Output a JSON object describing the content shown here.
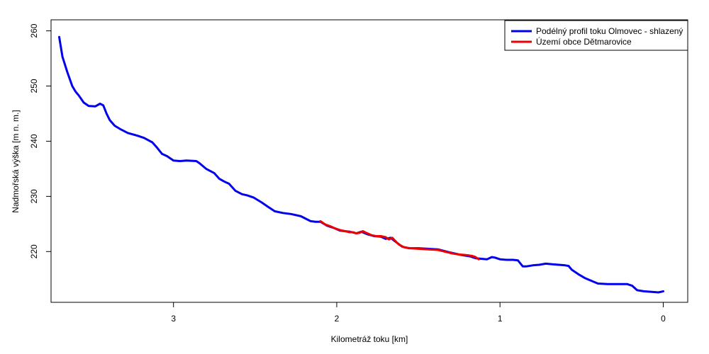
{
  "chart_data": {
    "type": "line",
    "xlabel": "Kilometráž toku [km]",
    "ylabel": "Nadmořská výška [m n. m.]",
    "xlim": [
      3.75,
      -0.15
    ],
    "ylim": [
      210.8,
      262.0
    ],
    "x_reversed": true,
    "x_ticks": [
      3,
      2,
      1,
      0
    ],
    "y_ticks": [
      220,
      230,
      240,
      250,
      260
    ],
    "grid": false,
    "legend_position": "top-right",
    "series": [
      {
        "name": "Podélný profil toku Olmovec - shlazený",
        "color": "#0000ee",
        "x": [
          3.7,
          3.68,
          3.65,
          3.62,
          3.6,
          3.58,
          3.55,
          3.52,
          3.48,
          3.45,
          3.43,
          3.41,
          3.39,
          3.36,
          3.32,
          3.28,
          3.22,
          3.18,
          3.13,
          3.1,
          3.07,
          3.04,
          3.0,
          2.96,
          2.92,
          2.86,
          2.84,
          2.8,
          2.75,
          2.72,
          2.69,
          2.66,
          2.62,
          2.58,
          2.55,
          2.51,
          2.46,
          2.42,
          2.38,
          2.33,
          2.28,
          2.22,
          2.16,
          2.13,
          2.1,
          2.06,
          2.02,
          1.98,
          1.92,
          1.88,
          1.85,
          1.81,
          1.77,
          1.73,
          1.7,
          1.67,
          1.64,
          1.6,
          1.56,
          1.5,
          1.44,
          1.38,
          1.3,
          1.24,
          1.18,
          1.15,
          1.12,
          1.08,
          1.05,
          1.03,
          1.0,
          0.96,
          0.92,
          0.89,
          0.86,
          0.84,
          0.8,
          0.76,
          0.72,
          0.68,
          0.64,
          0.6,
          0.58,
          0.56,
          0.52,
          0.48,
          0.44,
          0.4,
          0.34,
          0.3,
          0.22,
          0.19,
          0.16,
          0.12,
          0.07,
          0.03,
          0.0
        ],
        "y": [
          258.9,
          255.3,
          252.5,
          250.0,
          249.0,
          248.3,
          247.0,
          246.4,
          246.3,
          246.8,
          246.5,
          245.0,
          243.8,
          242.8,
          242.1,
          241.5,
          241.0,
          240.6,
          239.8,
          238.8,
          237.7,
          237.3,
          236.5,
          236.4,
          236.5,
          236.4,
          236.0,
          235.0,
          234.2,
          233.2,
          232.7,
          232.3,
          231.0,
          230.4,
          230.2,
          229.8,
          228.9,
          228.1,
          227.3,
          227.0,
          226.8,
          226.4,
          225.5,
          225.4,
          225.4,
          224.7,
          224.3,
          223.8,
          223.6,
          223.3,
          223.6,
          223.1,
          222.8,
          222.7,
          222.3,
          222.5,
          221.8,
          220.9,
          220.6,
          220.6,
          220.5,
          220.4,
          219.8,
          219.4,
          219.1,
          218.8,
          218.7,
          218.6,
          219.0,
          218.9,
          218.6,
          218.5,
          218.5,
          218.4,
          217.3,
          217.3,
          217.5,
          217.6,
          217.8,
          217.7,
          217.6,
          217.5,
          217.4,
          216.7,
          215.9,
          215.2,
          214.7,
          214.2,
          214.1,
          214.1,
          214.1,
          213.8,
          213.0,
          212.8,
          212.7,
          212.6,
          212.8
        ]
      },
      {
        "name": "Území obce Dětmarovice",
        "color": "#ee0000",
        "x": [
          2.1,
          2.07,
          2.04,
          2.01,
          1.98,
          1.95,
          1.92,
          1.9,
          1.88,
          1.86,
          1.84,
          1.82,
          1.79,
          1.76,
          1.73,
          1.7,
          1.68,
          1.66,
          1.64,
          1.62,
          1.59,
          1.55,
          1.5,
          1.44,
          1.38,
          1.34,
          1.3,
          1.26,
          1.22,
          1.19,
          1.17,
          1.15,
          1.14,
          1.13
        ],
        "y": [
          225.5,
          224.9,
          224.6,
          224.2,
          223.9,
          223.7,
          223.5,
          223.5,
          223.3,
          223.4,
          223.7,
          223.4,
          223.0,
          222.8,
          222.8,
          222.6,
          222.2,
          222.5,
          221.9,
          221.3,
          220.8,
          220.6,
          220.5,
          220.4,
          220.3,
          220.0,
          219.7,
          219.5,
          219.4,
          219.3,
          219.2,
          219.0,
          218.8,
          218.6
        ]
      }
    ]
  }
}
